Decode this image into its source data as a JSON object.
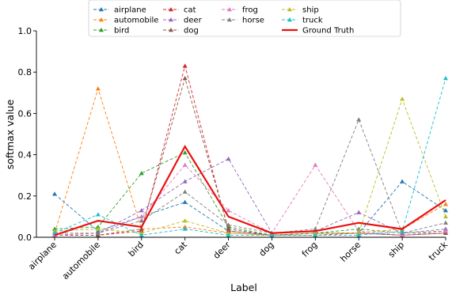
{
  "chart_data": {
    "type": "line",
    "title": "",
    "xlabel": "Label",
    "ylabel": "softmax value",
    "ylim": [
      0,
      1.0
    ],
    "yticks": [
      "0.0",
      "0.2",
      "0.4",
      "0.6",
      "0.8",
      "1.0"
    ],
    "grid": false,
    "legend_placement": "top-center",
    "categories": [
      "airplane",
      "automobile",
      "bird",
      "cat",
      "deer",
      "dog",
      "frog",
      "horse",
      "ship",
      "truck"
    ],
    "series": [
      {
        "name": "airplane",
        "color": "#1f77b4",
        "style": "dashed",
        "marker": "triangle",
        "values": [
          0.21,
          0.03,
          0.1,
          0.17,
          0.03,
          0.01,
          0.02,
          0.02,
          0.27,
          0.13
        ]
      },
      {
        "name": "automobile",
        "color": "#ff7f0e",
        "style": "dashed",
        "marker": "triangle",
        "values": [
          0.02,
          0.72,
          0.04,
          0.05,
          0.02,
          0.01,
          0.02,
          0.02,
          0.04,
          0.16
        ]
      },
      {
        "name": "bird",
        "color": "#2ca02c",
        "style": "dashed",
        "marker": "triangle",
        "values": [
          0.04,
          0.05,
          0.31,
          0.41,
          0.05,
          0.01,
          0.02,
          0.04,
          0.02,
          0.03
        ]
      },
      {
        "name": "cat",
        "color": "#d62728",
        "style": "dashed",
        "marker": "triangle",
        "values": [
          0.01,
          0.01,
          0.03,
          0.83,
          0.03,
          0.01,
          0.01,
          0.02,
          0.01,
          0.02
        ]
      },
      {
        "name": "deer",
        "color": "#9467bd",
        "style": "dashed",
        "marker": "triangle",
        "values": [
          0.01,
          0.02,
          0.13,
          0.27,
          0.38,
          0.02,
          0.03,
          0.12,
          0.02,
          0.04
        ]
      },
      {
        "name": "dog",
        "color": "#8c564b",
        "style": "dashed",
        "marker": "triangle",
        "values": [
          0.01,
          0.01,
          0.04,
          0.77,
          0.04,
          0.01,
          0.02,
          0.02,
          0.01,
          0.02
        ]
      },
      {
        "name": "frog",
        "color": "#e377c2",
        "style": "dashed",
        "marker": "triangle",
        "values": [
          0.01,
          0.02,
          0.1,
          0.35,
          0.13,
          0.02,
          0.35,
          0.03,
          0.01,
          0.03
        ]
      },
      {
        "name": "horse",
        "color": "#7f7f7f",
        "style": "dashed",
        "marker": "triangle",
        "values": [
          0.02,
          0.02,
          0.08,
          0.22,
          0.06,
          0.02,
          0.04,
          0.57,
          0.02,
          0.07
        ]
      },
      {
        "name": "ship",
        "color": "#bcbd22",
        "style": "dashed",
        "marker": "triangle",
        "values": [
          0.03,
          0.04,
          0.02,
          0.08,
          0.02,
          0.01,
          0.02,
          0.02,
          0.67,
          0.1
        ]
      },
      {
        "name": "truck",
        "color": "#17becf",
        "style": "dashed",
        "marker": "triangle",
        "values": [
          0.02,
          0.11,
          0.01,
          0.04,
          0.01,
          0.01,
          0.01,
          0.01,
          0.03,
          0.77
        ]
      },
      {
        "name": "Ground Truth",
        "color": "#e8110f",
        "style": "solid",
        "marker": "none",
        "values": [
          0.01,
          0.08,
          0.05,
          0.44,
          0.1,
          0.02,
          0.03,
          0.07,
          0.04,
          0.18
        ]
      }
    ]
  }
}
